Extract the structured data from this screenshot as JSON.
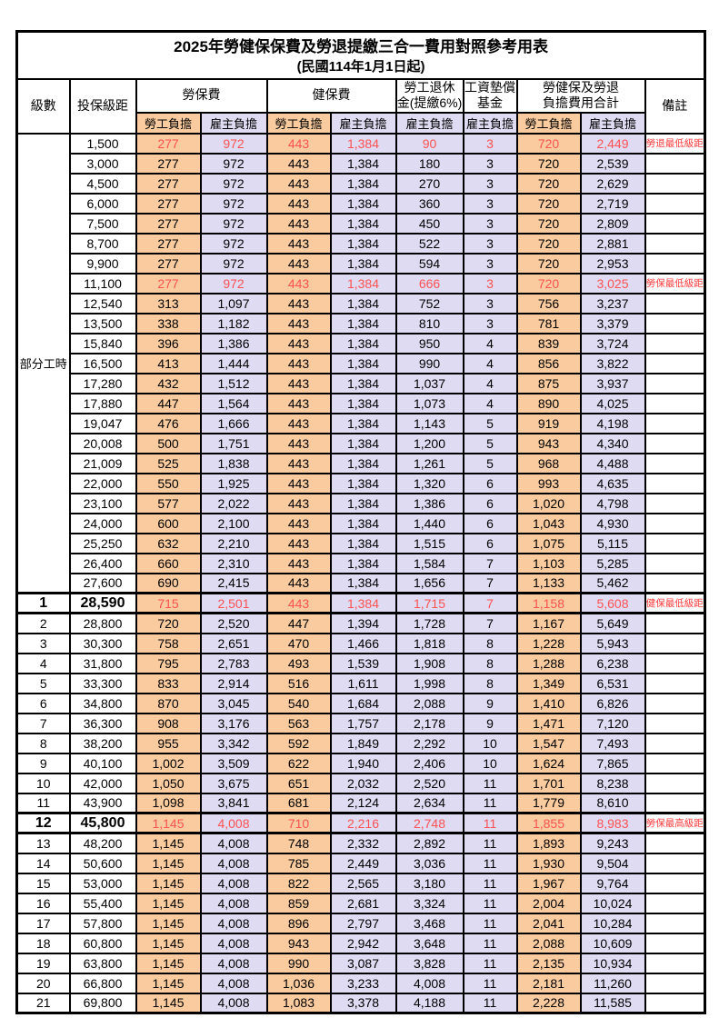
{
  "title": "2025年勞健保保費及勞退提繳三合一費用對照參考用表",
  "subtitle": "(民國114年1月1日起)",
  "header": {
    "level": "級數",
    "bracket": "投保級距",
    "labor_ins": "勞保費",
    "health_ins": "健保費",
    "pension_line1": "勞工退休",
    "pension_line2": "金(提繳6%)",
    "wage_fund_line1": "工資墊償",
    "wage_fund_line2": "基金",
    "total_line1": "勞健保及勞退",
    "total_line2": "負擔費用合計",
    "note": "備註",
    "employee": "勞工負擔",
    "employer": "雇主負擔"
  },
  "part_time_label": "部分工時",
  "part_time_rowspan": 23,
  "colors": {
    "employee_fill": "#F9CB9E",
    "employer_fill": "#DFDBF2",
    "highlight_red": "#FB5252",
    "border": "#000000"
  },
  "rows": [
    {
      "level": "",
      "bracket": "1,500",
      "v": [
        "277",
        "972",
        "443",
        "1,384",
        "90",
        "3",
        "720",
        "2,449"
      ],
      "note": "勞退最低級距",
      "red": true,
      "emph": false
    },
    {
      "level": "",
      "bracket": "3,000",
      "v": [
        "277",
        "972",
        "443",
        "1,384",
        "180",
        "3",
        "720",
        "2,539"
      ],
      "note": "",
      "red": false,
      "emph": false
    },
    {
      "level": "",
      "bracket": "4,500",
      "v": [
        "277",
        "972",
        "443",
        "1,384",
        "270",
        "3",
        "720",
        "2,629"
      ],
      "note": "",
      "red": false,
      "emph": false
    },
    {
      "level": "",
      "bracket": "6,000",
      "v": [
        "277",
        "972",
        "443",
        "1,384",
        "360",
        "3",
        "720",
        "2,719"
      ],
      "note": "",
      "red": false,
      "emph": false
    },
    {
      "level": "",
      "bracket": "7,500",
      "v": [
        "277",
        "972",
        "443",
        "1,384",
        "450",
        "3",
        "720",
        "2,809"
      ],
      "note": "",
      "red": false,
      "emph": false
    },
    {
      "level": "",
      "bracket": "8,700",
      "v": [
        "277",
        "972",
        "443",
        "1,384",
        "522",
        "3",
        "720",
        "2,881"
      ],
      "note": "",
      "red": false,
      "emph": false
    },
    {
      "level": "",
      "bracket": "9,900",
      "v": [
        "277",
        "972",
        "443",
        "1,384",
        "594",
        "3",
        "720",
        "2,953"
      ],
      "note": "",
      "red": false,
      "emph": false
    },
    {
      "level": "",
      "bracket": "11,100",
      "v": [
        "277",
        "972",
        "443",
        "1,384",
        "666",
        "3",
        "720",
        "3,025"
      ],
      "note": "勞保最低級距",
      "red": true,
      "emph": false
    },
    {
      "level": "",
      "bracket": "12,540",
      "v": [
        "313",
        "1,097",
        "443",
        "1,384",
        "752",
        "3",
        "756",
        "3,237"
      ],
      "note": "",
      "red": false,
      "emph": false
    },
    {
      "level": "",
      "bracket": "13,500",
      "v": [
        "338",
        "1,182",
        "443",
        "1,384",
        "810",
        "3",
        "781",
        "3,379"
      ],
      "note": "",
      "red": false,
      "emph": false
    },
    {
      "level": "",
      "bracket": "15,840",
      "v": [
        "396",
        "1,386",
        "443",
        "1,384",
        "950",
        "4",
        "839",
        "3,724"
      ],
      "note": "",
      "red": false,
      "emph": false
    },
    {
      "level": "",
      "bracket": "16,500",
      "v": [
        "413",
        "1,444",
        "443",
        "1,384",
        "990",
        "4",
        "856",
        "3,822"
      ],
      "note": "",
      "red": false,
      "emph": false
    },
    {
      "level": "",
      "bracket": "17,280",
      "v": [
        "432",
        "1,512",
        "443",
        "1,384",
        "1,037",
        "4",
        "875",
        "3,937"
      ],
      "note": "",
      "red": false,
      "emph": false
    },
    {
      "level": "",
      "bracket": "17,880",
      "v": [
        "447",
        "1,564",
        "443",
        "1,384",
        "1,073",
        "4",
        "890",
        "4,025"
      ],
      "note": "",
      "red": false,
      "emph": false
    },
    {
      "level": "",
      "bracket": "19,047",
      "v": [
        "476",
        "1,666",
        "443",
        "1,384",
        "1,143",
        "5",
        "919",
        "4,198"
      ],
      "note": "",
      "red": false,
      "emph": false
    },
    {
      "level": "",
      "bracket": "20,008",
      "v": [
        "500",
        "1,751",
        "443",
        "1,384",
        "1,200",
        "5",
        "943",
        "4,340"
      ],
      "note": "",
      "red": false,
      "emph": false
    },
    {
      "level": "",
      "bracket": "21,009",
      "v": [
        "525",
        "1,838",
        "443",
        "1,384",
        "1,261",
        "5",
        "968",
        "4,488"
      ],
      "note": "",
      "red": false,
      "emph": false
    },
    {
      "level": "",
      "bracket": "22,000",
      "v": [
        "550",
        "1,925",
        "443",
        "1,384",
        "1,320",
        "6",
        "993",
        "4,635"
      ],
      "note": "",
      "red": false,
      "emph": false
    },
    {
      "level": "",
      "bracket": "23,100",
      "v": [
        "577",
        "2,022",
        "443",
        "1,384",
        "1,386",
        "6",
        "1,020",
        "4,798"
      ],
      "note": "",
      "red": false,
      "emph": false
    },
    {
      "level": "",
      "bracket": "24,000",
      "v": [
        "600",
        "2,100",
        "443",
        "1,384",
        "1,440",
        "6",
        "1,043",
        "4,930"
      ],
      "note": "",
      "red": false,
      "emph": false
    },
    {
      "level": "",
      "bracket": "25,250",
      "v": [
        "632",
        "2,210",
        "443",
        "1,384",
        "1,515",
        "6",
        "1,075",
        "5,115"
      ],
      "note": "",
      "red": false,
      "emph": false
    },
    {
      "level": "",
      "bracket": "26,400",
      "v": [
        "660",
        "2,310",
        "443",
        "1,384",
        "1,584",
        "7",
        "1,103",
        "5,285"
      ],
      "note": "",
      "red": false,
      "emph": false
    },
    {
      "level": "",
      "bracket": "27,600",
      "v": [
        "690",
        "2,415",
        "443",
        "1,384",
        "1,656",
        "7",
        "1,133",
        "5,462"
      ],
      "note": "",
      "red": false,
      "emph": false
    },
    {
      "level": "1",
      "bracket": "28,590",
      "v": [
        "715",
        "2,501",
        "443",
        "1,384",
        "1,715",
        "7",
        "1,158",
        "5,608"
      ],
      "note": "健保最低級距",
      "red": true,
      "emph": true
    },
    {
      "level": "2",
      "bracket": "28,800",
      "v": [
        "720",
        "2,520",
        "447",
        "1,394",
        "1,728",
        "7",
        "1,167",
        "5,649"
      ],
      "note": "",
      "red": false,
      "emph": false
    },
    {
      "level": "3",
      "bracket": "30,300",
      "v": [
        "758",
        "2,651",
        "470",
        "1,466",
        "1,818",
        "8",
        "1,228",
        "5,943"
      ],
      "note": "",
      "red": false,
      "emph": false
    },
    {
      "level": "4",
      "bracket": "31,800",
      "v": [
        "795",
        "2,783",
        "493",
        "1,539",
        "1,908",
        "8",
        "1,288",
        "6,238"
      ],
      "note": "",
      "red": false,
      "emph": false
    },
    {
      "level": "5",
      "bracket": "33,300",
      "v": [
        "833",
        "2,914",
        "516",
        "1,611",
        "1,998",
        "8",
        "1,349",
        "6,531"
      ],
      "note": "",
      "red": false,
      "emph": false
    },
    {
      "level": "6",
      "bracket": "34,800",
      "v": [
        "870",
        "3,045",
        "540",
        "1,684",
        "2,088",
        "9",
        "1,410",
        "6,826"
      ],
      "note": "",
      "red": false,
      "emph": false
    },
    {
      "level": "7",
      "bracket": "36,300",
      "v": [
        "908",
        "3,176",
        "563",
        "1,757",
        "2,178",
        "9",
        "1,471",
        "7,120"
      ],
      "note": "",
      "red": false,
      "emph": false
    },
    {
      "level": "8",
      "bracket": "38,200",
      "v": [
        "955",
        "3,342",
        "592",
        "1,849",
        "2,292",
        "10",
        "1,547",
        "7,493"
      ],
      "note": "",
      "red": false,
      "emph": false
    },
    {
      "level": "9",
      "bracket": "40,100",
      "v": [
        "1,002",
        "3,509",
        "622",
        "1,940",
        "2,406",
        "10",
        "1,624",
        "7,865"
      ],
      "note": "",
      "red": false,
      "emph": false
    },
    {
      "level": "10",
      "bracket": "42,000",
      "v": [
        "1,050",
        "3,675",
        "651",
        "2,032",
        "2,520",
        "11",
        "1,701",
        "8,238"
      ],
      "note": "",
      "red": false,
      "emph": false
    },
    {
      "level": "11",
      "bracket": "43,900",
      "v": [
        "1,098",
        "3,841",
        "681",
        "2,124",
        "2,634",
        "11",
        "1,779",
        "8,610"
      ],
      "note": "",
      "red": false,
      "emph": false
    },
    {
      "level": "12",
      "bracket": "45,800",
      "v": [
        "1,145",
        "4,008",
        "710",
        "2,216",
        "2,748",
        "11",
        "1,855",
        "8,983"
      ],
      "note": "勞保最高級距",
      "red": true,
      "emph": true
    },
    {
      "level": "13",
      "bracket": "48,200",
      "v": [
        "1,145",
        "4,008",
        "748",
        "2,332",
        "2,892",
        "11",
        "1,893",
        "9,243"
      ],
      "note": "",
      "red": false,
      "emph": false
    },
    {
      "level": "14",
      "bracket": "50,600",
      "v": [
        "1,145",
        "4,008",
        "785",
        "2,449",
        "3,036",
        "11",
        "1,930",
        "9,504"
      ],
      "note": "",
      "red": false,
      "emph": false
    },
    {
      "level": "15",
      "bracket": "53,000",
      "v": [
        "1,145",
        "4,008",
        "822",
        "2,565",
        "3,180",
        "11",
        "1,967",
        "9,764"
      ],
      "note": "",
      "red": false,
      "emph": false
    },
    {
      "level": "16",
      "bracket": "55,400",
      "v": [
        "1,145",
        "4,008",
        "859",
        "2,681",
        "3,324",
        "11",
        "2,004",
        "10,024"
      ],
      "note": "",
      "red": false,
      "emph": false
    },
    {
      "level": "17",
      "bracket": "57,800",
      "v": [
        "1,145",
        "4,008",
        "896",
        "2,797",
        "3,468",
        "11",
        "2,041",
        "10,284"
      ],
      "note": "",
      "red": false,
      "emph": false
    },
    {
      "level": "18",
      "bracket": "60,800",
      "v": [
        "1,145",
        "4,008",
        "943",
        "2,942",
        "3,648",
        "11",
        "2,088",
        "10,609"
      ],
      "note": "",
      "red": false,
      "emph": false
    },
    {
      "level": "19",
      "bracket": "63,800",
      "v": [
        "1,145",
        "4,008",
        "990",
        "3,087",
        "3,828",
        "11",
        "2,135",
        "10,934"
      ],
      "note": "",
      "red": false,
      "emph": false
    },
    {
      "level": "20",
      "bracket": "66,800",
      "v": [
        "1,145",
        "4,008",
        "1,036",
        "3,233",
        "4,008",
        "11",
        "2,181",
        "11,260"
      ],
      "note": "",
      "red": false,
      "emph": false
    },
    {
      "level": "21",
      "bracket": "69,800",
      "v": [
        "1,145",
        "4,008",
        "1,083",
        "3,378",
        "4,188",
        "11",
        "2,228",
        "11,585"
      ],
      "note": "",
      "red": false,
      "emph": false
    }
  ]
}
